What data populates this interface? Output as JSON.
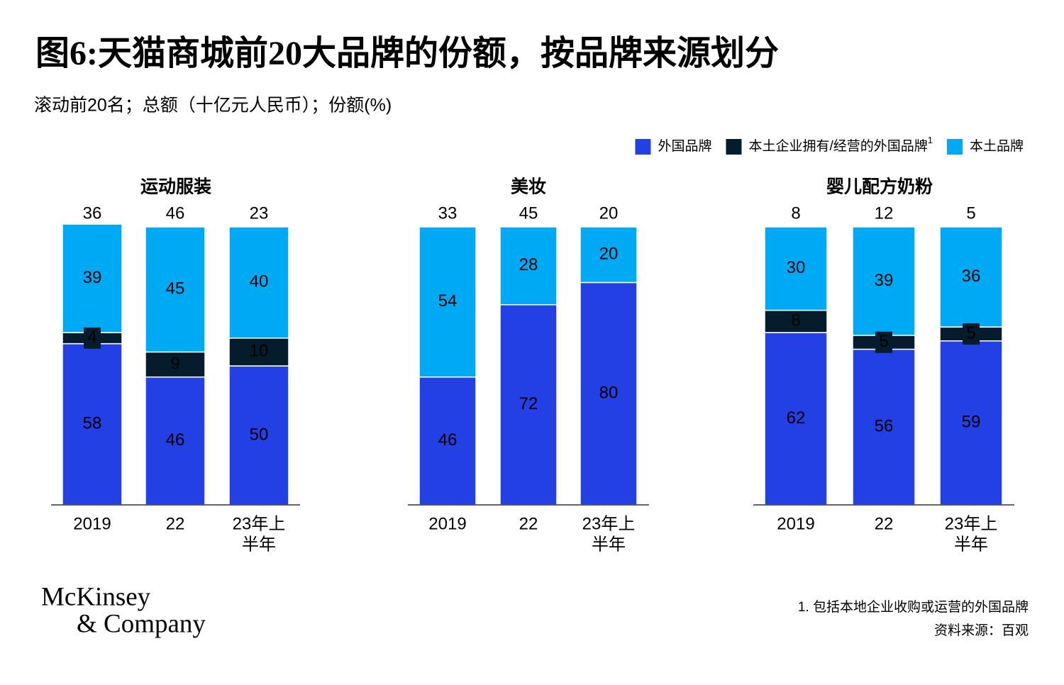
{
  "chart_data": {
    "type": "bar",
    "stacked": true,
    "title": "图6:天猫商城前20大品牌的份额，按品牌来源划分",
    "subtitle": "滚动前20名；总额（十亿元人民币）；份额(%)",
    "legend_position": "top-right",
    "ylim": [
      0,
      100
    ],
    "series": [
      {
        "name": "外国品牌",
        "color": "#2340e4",
        "label_color": "#ffffff"
      },
      {
        "name": "本土企业拥有/经营的外国品牌",
        "note": "1",
        "color": "#051c2c",
        "label_color": "#ffffff"
      },
      {
        "name": "本土品牌",
        "color": "#00a9f4",
        "label_color": "#051c2c"
      }
    ],
    "panels": [
      {
        "title": "运动服装",
        "categories": [
          "2019",
          "22",
          [
            "23年上",
            "半年"
          ]
        ],
        "totals": [
          36,
          46,
          23
        ],
        "values": [
          [
            58,
            46,
            50
          ],
          [
            4,
            9,
            10
          ],
          [
            39,
            45,
            40
          ]
        ]
      },
      {
        "title": "美妆",
        "categories": [
          "2019",
          "22",
          [
            "23年上",
            "半年"
          ]
        ],
        "totals": [
          33,
          45,
          20
        ],
        "values": [
          [
            46,
            72,
            80
          ],
          [
            null,
            null,
            null
          ],
          [
            54,
            28,
            20
          ]
        ]
      },
      {
        "title": "婴儿配方奶粉",
        "categories": [
          "2019",
          "22",
          [
            "23年上",
            "半年"
          ]
        ],
        "totals": [
          8,
          12,
          5
        ],
        "values": [
          [
            62,
            56,
            59
          ],
          [
            8,
            5,
            5
          ],
          [
            30,
            39,
            36
          ]
        ]
      }
    ],
    "footnote": "1. 包括本地企业收购或运营的外国品牌",
    "source": "资料来源：百观",
    "logo": [
      "McKinsey",
      "& Company"
    ]
  }
}
